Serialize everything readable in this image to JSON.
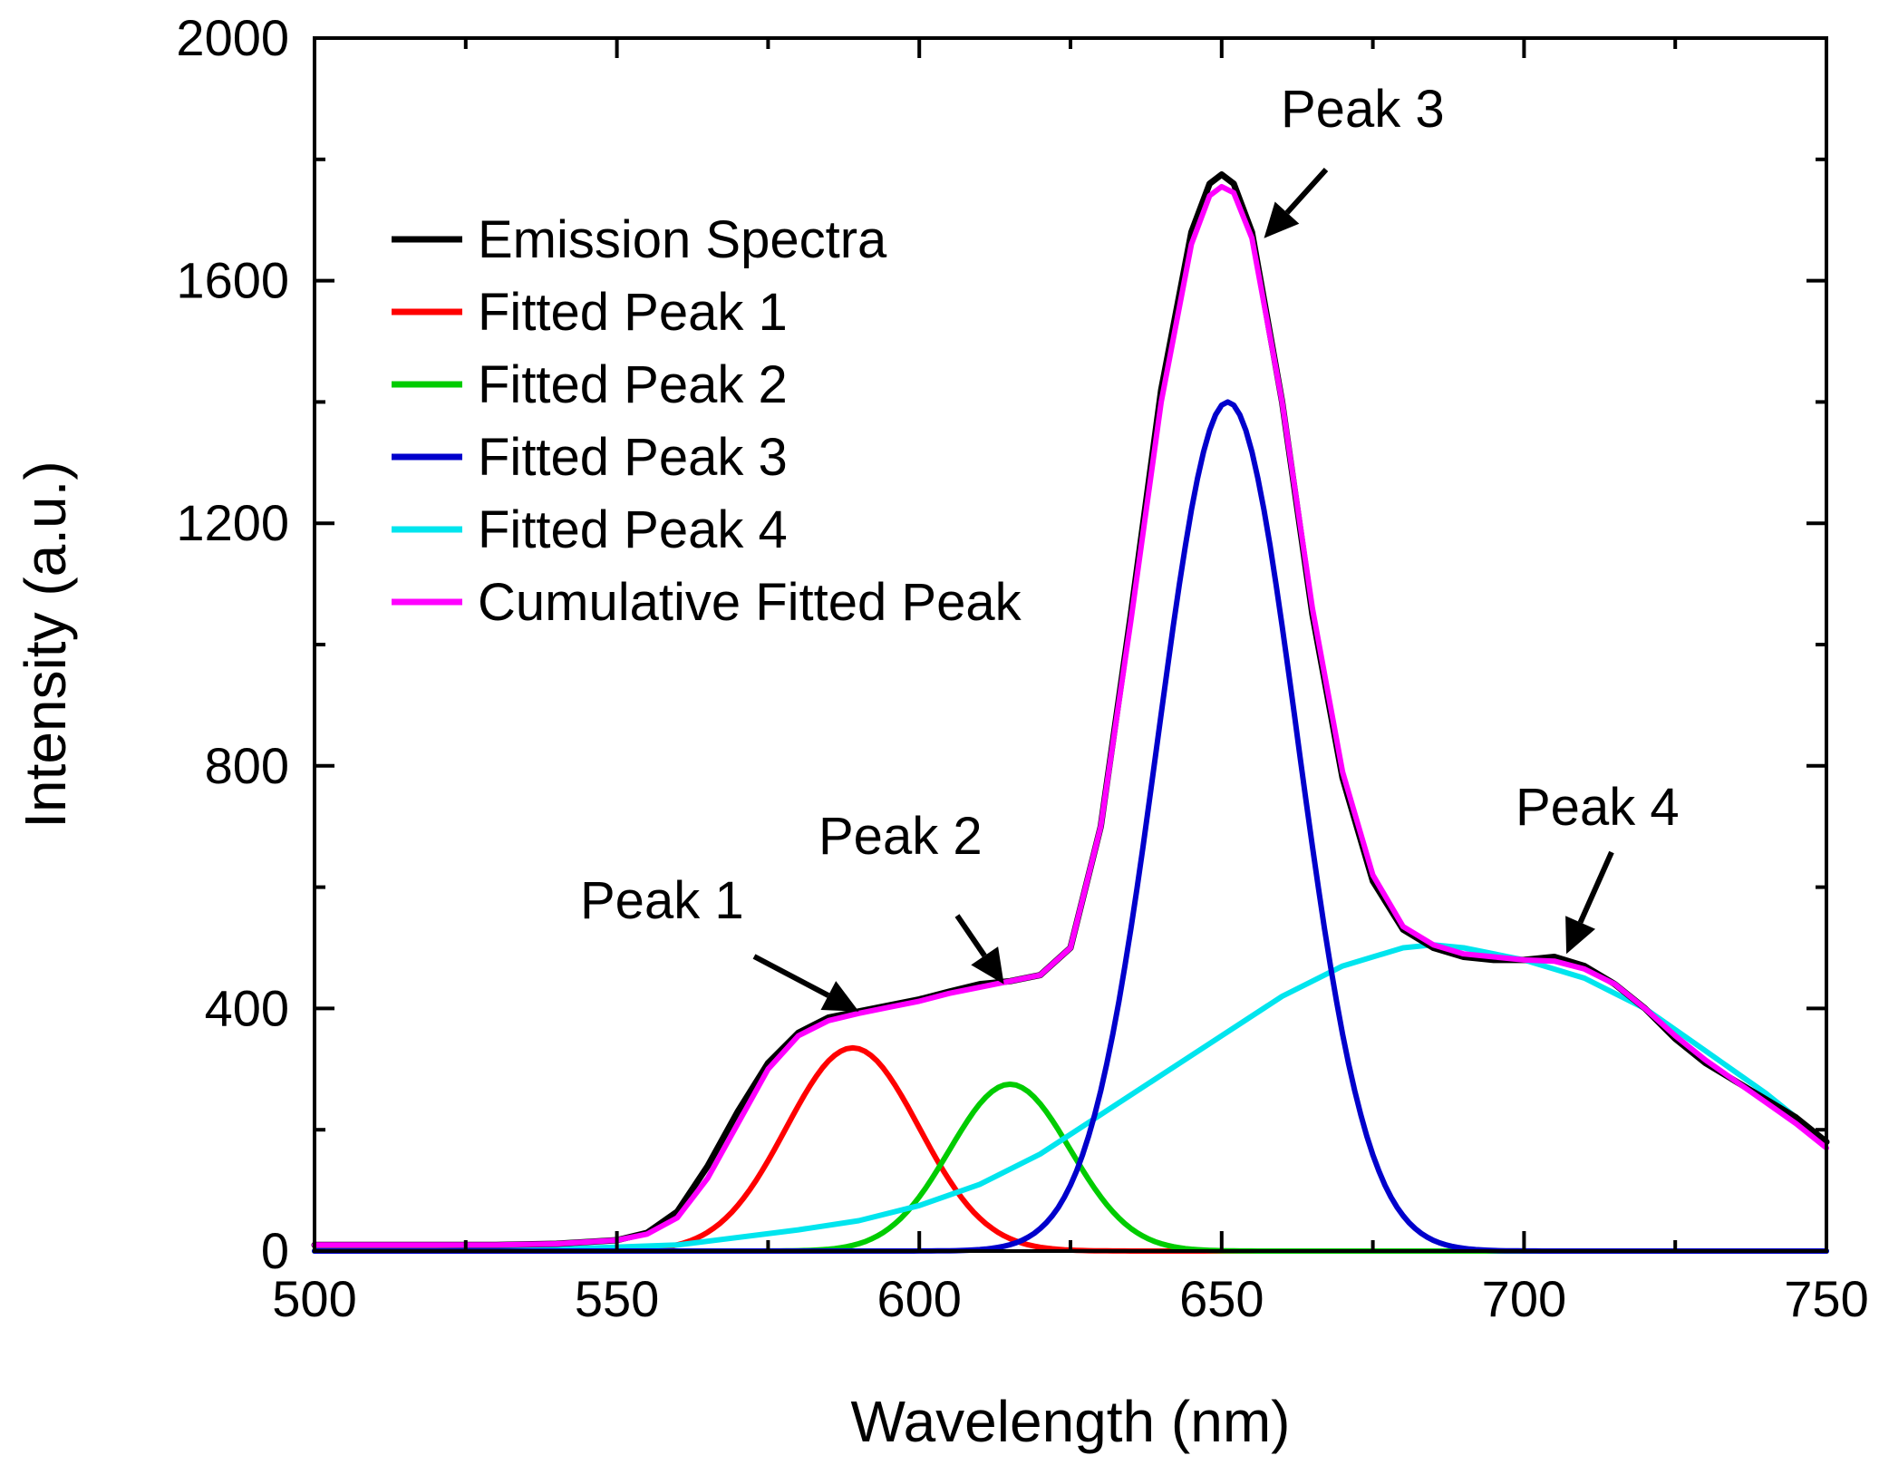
{
  "chart_data": {
    "type": "line",
    "xlabel": "Wavelength (nm)",
    "ylabel": "Intensity (a.u.)",
    "xlim": [
      500,
      750
    ],
    "ylim": [
      0,
      2000
    ],
    "xticks": [
      500,
      550,
      600,
      650,
      700,
      750
    ],
    "yticks": [
      0,
      400,
      800,
      1200,
      1600,
      2000
    ],
    "grid": false,
    "legend_position": "top-left",
    "series": [
      {
        "name": "Emission Spectra",
        "color": "#000000",
        "x": [
          500,
          510,
          520,
          530,
          540,
          550,
          555,
          560,
          565,
          570,
          575,
          580,
          585,
          590,
          595,
          600,
          605,
          610,
          615,
          620,
          625,
          630,
          635,
          640,
          645,
          648,
          650,
          652,
          655,
          660,
          665,
          670,
          675,
          680,
          685,
          690,
          695,
          700,
          705,
          710,
          715,
          720,
          725,
          730,
          735,
          740,
          745,
          750
        ],
        "y": [
          10,
          10,
          10,
          10,
          12,
          18,
          30,
          65,
          140,
          230,
          310,
          360,
          385,
          395,
          405,
          415,
          428,
          440,
          445,
          455,
          500,
          700,
          1050,
          1420,
          1680,
          1760,
          1775,
          1760,
          1680,
          1400,
          1050,
          780,
          610,
          530,
          500,
          485,
          480,
          480,
          485,
          470,
          440,
          400,
          350,
          310,
          280,
          250,
          220,
          180
        ]
      },
      {
        "name": "Fitted Peak 1",
        "color": "#ff0000",
        "gaussian": {
          "amplitude": 335,
          "center": 589,
          "sigma": 11
        }
      },
      {
        "name": "Fitted Peak 2",
        "color": "#00cc00",
        "gaussian": {
          "amplitude": 275,
          "center": 615,
          "sigma": 10
        }
      },
      {
        "name": "Fitted Peak 3",
        "color": "#0000cc",
        "gaussian": {
          "amplitude": 1400,
          "center": 651,
          "sigma": 11.5
        }
      },
      {
        "name": "Fitted Peak 4",
        "color": "#00e5ee",
        "x": [
          500,
          520,
          540,
          560,
          580,
          590,
          600,
          610,
          620,
          630,
          640,
          650,
          660,
          670,
          680,
          685,
          690,
          700,
          710,
          720,
          730,
          740,
          750
        ],
        "y": [
          0,
          0,
          3,
          10,
          35,
          50,
          75,
          110,
          160,
          225,
          290,
          355,
          420,
          470,
          500,
          505,
          500,
          480,
          450,
          400,
          330,
          260,
          180
        ]
      },
      {
        "name": "Cumulative Fitted Peak",
        "color": "#ff00ff",
        "x": [
          500,
          510,
          520,
          530,
          540,
          550,
          555,
          560,
          565,
          570,
          575,
          580,
          585,
          590,
          595,
          600,
          605,
          610,
          615,
          620,
          625,
          630,
          635,
          640,
          645,
          648,
          650,
          652,
          655,
          660,
          665,
          670,
          675,
          680,
          685,
          690,
          695,
          700,
          705,
          710,
          715,
          720,
          725,
          730,
          735,
          740,
          745,
          750
        ],
        "y": [
          10,
          10,
          10,
          10,
          12,
          18,
          28,
          55,
          120,
          210,
          300,
          355,
          380,
          392,
          402,
          412,
          425,
          435,
          445,
          455,
          500,
          700,
          1040,
          1400,
          1660,
          1740,
          1755,
          1745,
          1670,
          1400,
          1060,
          790,
          620,
          535,
          505,
          490,
          485,
          480,
          478,
          465,
          440,
          400,
          355,
          315,
          280,
          245,
          210,
          170
        ]
      }
    ],
    "annotations": [
      {
        "text": "Peak 1",
        "target": [
          590,
          395
        ]
      },
      {
        "text": "Peak 2",
        "target": [
          614,
          440
        ]
      },
      {
        "text": "Peak 3",
        "target": [
          657,
          1670
        ]
      },
      {
        "text": "Peak 4",
        "target": [
          707,
          490
        ]
      }
    ]
  }
}
